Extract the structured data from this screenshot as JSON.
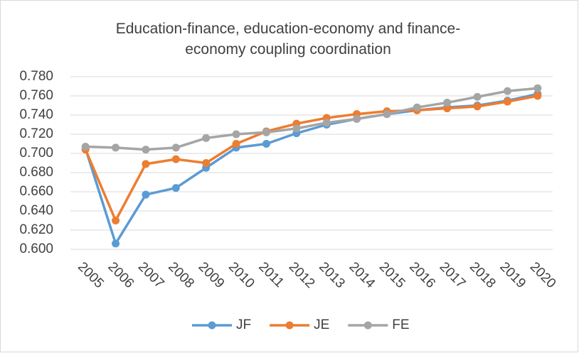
{
  "chart_data": {
    "type": "line",
    "title": "Education-finance, education-economy and finance-economy coupling coordination",
    "categories": [
      "2005",
      "2006",
      "2007",
      "2008",
      "2009",
      "2010",
      "2011",
      "2012",
      "2013",
      "2014",
      "2015",
      "2016",
      "2017",
      "2018",
      "2019",
      "2020"
    ],
    "series": [
      {
        "name": "JF",
        "color": "#5b9bd5",
        "values": [
          0.705,
          0.606,
          0.657,
          0.664,
          0.685,
          0.706,
          0.71,
          0.721,
          0.73,
          0.736,
          0.741,
          0.745,
          0.748,
          0.75,
          0.755,
          0.762
        ]
      },
      {
        "name": "JE",
        "color": "#ed7d31",
        "values": [
          0.704,
          0.63,
          0.689,
          0.694,
          0.69,
          0.71,
          0.723,
          0.731,
          0.737,
          0.741,
          0.744,
          0.745,
          0.747,
          0.749,
          0.754,
          0.76
        ]
      },
      {
        "name": "FE",
        "color": "#a5a5a5",
        "values": [
          0.707,
          0.706,
          0.704,
          0.706,
          0.716,
          0.72,
          0.722,
          0.726,
          0.732,
          0.736,
          0.741,
          0.748,
          0.753,
          0.759,
          0.765,
          0.768
        ]
      }
    ],
    "ylim": [
      0.6,
      0.78
    ],
    "yticks": [
      {
        "value": 0.6,
        "label": "0.600"
      },
      {
        "value": 0.62,
        "label": "0.620"
      },
      {
        "value": 0.64,
        "label": "0.640"
      },
      {
        "value": 0.66,
        "label": "0.660"
      },
      {
        "value": 0.68,
        "label": "0.680"
      },
      {
        "value": 0.7,
        "label": "0.700"
      },
      {
        "value": 0.72,
        "label": "0.720"
      },
      {
        "value": 0.74,
        "label": "0.740"
      },
      {
        "value": 0.76,
        "label": "0.760"
      },
      {
        "value": 0.78,
        "label": "0.780"
      }
    ],
    "grid": true,
    "legend": "bottom"
  }
}
